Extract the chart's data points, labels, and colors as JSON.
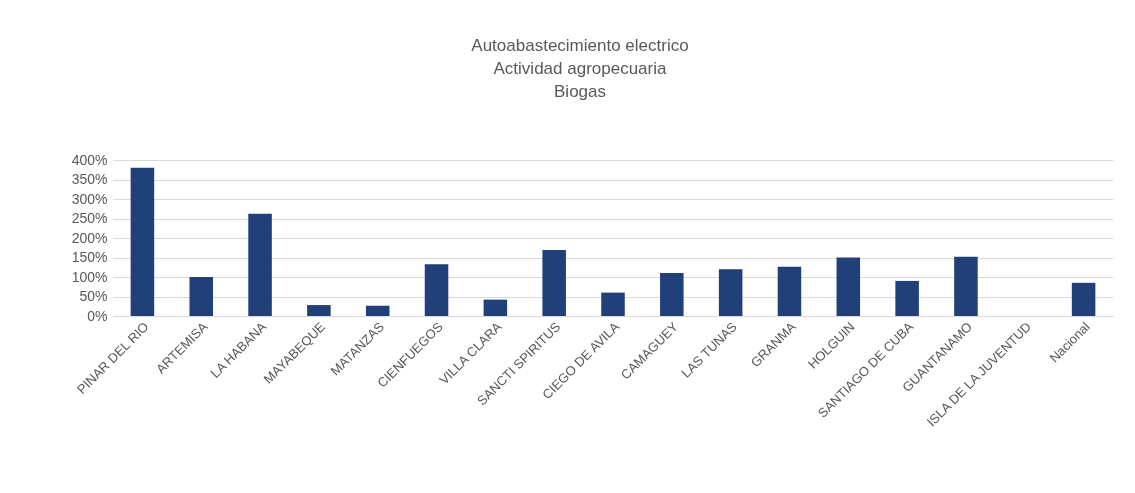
{
  "chart_data": {
    "type": "bar",
    "title": "Autoabastecimiento electrico\nActividad agropecuaria\nBiogas",
    "categories": [
      "PINAR DEL RIO",
      "ARTEMISA",
      "LA HABANA",
      "MAYABEQUE",
      "MATANZAS",
      "CIENFUEGOS",
      "VILLA CLARA",
      "SANCTI SPIRITUS",
      "CIEGO DE AVILA",
      "CAMAGUEY",
      "LAS TUNAS",
      "GRANMA",
      "HOLGUIN",
      "SANTIAGO DE CUBA",
      "GUANTANAMO",
      "ISLA DE LA JUVENTUD",
      "Nacional"
    ],
    "values": [
      380,
      100,
      262,
      28,
      26,
      133,
      42,
      169,
      60,
      110,
      120,
      126,
      150,
      90,
      152,
      null,
      85
    ],
    "color": "#213f78",
    "ylim": [
      0,
      400
    ],
    "yticks": [
      {
        "value": 0,
        "label": "0%"
      },
      {
        "value": 50,
        "label": "50%"
      },
      {
        "value": 100,
        "label": "100%"
      },
      {
        "value": 150,
        "label": "150%"
      },
      {
        "value": 200,
        "label": "200%"
      },
      {
        "value": 250,
        "label": "250%"
      },
      {
        "value": 300,
        "label": "300%"
      },
      {
        "value": 350,
        "label": "350%"
      },
      {
        "value": 400,
        "label": "400%"
      }
    ],
    "grid": "y"
  }
}
